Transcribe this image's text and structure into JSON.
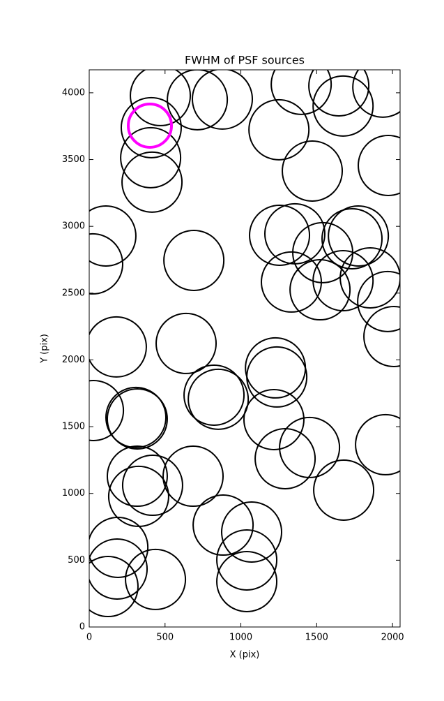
{
  "chart_data": {
    "type": "scatter",
    "title": "FWHM of PSF sources",
    "x_label": "X (pix)",
    "y_label": "Y (pix)",
    "xlim": [
      0,
      2050
    ],
    "ylim": [
      0,
      4172
    ],
    "xticks": [
      0,
      500,
      1000,
      1500,
      2000
    ],
    "yticks": [
      0,
      500,
      1000,
      1500,
      2000,
      2500,
      3000,
      3500,
      4000
    ],
    "grid": false,
    "series": [
      {
        "color": "#000000",
        "x": [
          469,
          713,
          878,
          409,
          405,
          414,
          1398,
          1646,
          1674,
          1936,
          1251,
          1471,
          1972,
          110,
          23,
          690,
          1255,
          1356,
          1540,
          1733,
          1775,
          1333,
          1522,
          1674,
          1853,
          1968,
          2009,
          179,
          639,
          1228,
          1237,
          823,
          851,
          28,
          308,
          317,
          1218,
          1453,
          1292,
          1954,
          1678,
          317,
          418,
          326,
          685,
          883,
          1071,
          189,
          184,
          124,
          437,
          1039,
          1039
        ],
        "values": [
          3979,
          3948,
          3953,
          3739,
          3514,
          3331,
          4063,
          4052,
          3901,
          4042,
          3723,
          3414,
          3456,
          2928,
          2719,
          2745,
          2933,
          2944,
          2803,
          2907,
          2928,
          2583,
          2525,
          2593,
          2614,
          2437,
          2175,
          2097,
          2123,
          1940,
          1872,
          1736,
          1705,
          1621,
          1569,
          1558,
          1553,
          1344,
          1260,
          1365,
          1025,
          1129,
          1061,
          978,
          1129,
          763,
          711,
          596,
          434,
          303,
          356,
          502,
          340
        ]
      },
      {
        "color": "#ff00ff",
        "x": [
          400
        ],
        "values": [
          3754
        ]
      }
    ]
  }
}
